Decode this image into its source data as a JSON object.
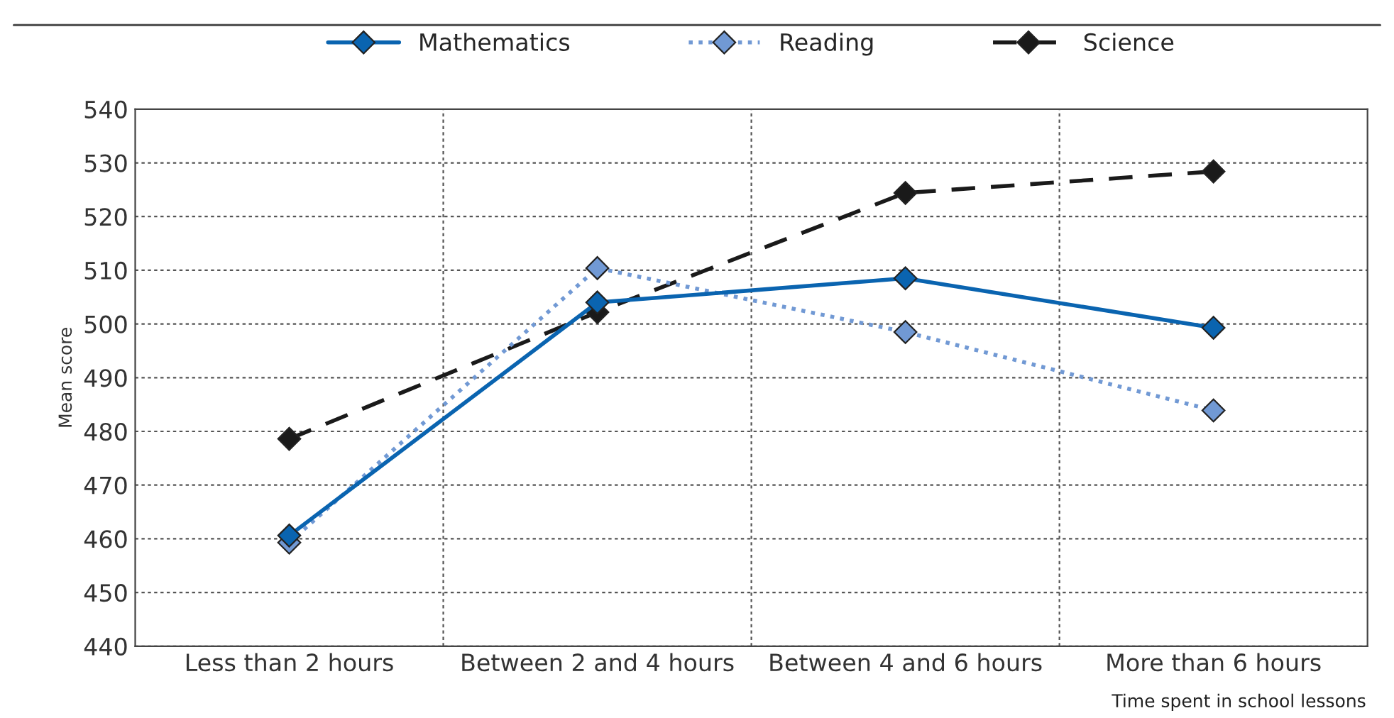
{
  "chart_data": {
    "type": "line",
    "categories": [
      "Less than 2 hours",
      "Between 2 and 4 hours",
      "Between 4 and 6 hours",
      "More than 6 hours"
    ],
    "series": [
      {
        "name": "Mathematics",
        "color": "#0a64b0",
        "values": [
          460.6,
          504.0,
          508.5,
          499.3
        ],
        "line_style": "solid"
      },
      {
        "name": "Reading",
        "color": "#7199d4",
        "values": [
          459.3,
          510.4,
          498.5,
          483.9
        ],
        "line_style": "dotted"
      },
      {
        "name": "Science",
        "color": "#1a1a1a",
        "values": [
          478.6,
          502.2,
          524.4,
          528.4
        ],
        "line_style": "dashed"
      }
    ],
    "ylabel": "Mean score",
    "xlabel": "Time spent in school lessons",
    "ylim": [
      440,
      540
    ],
    "yticks": [
      440,
      450,
      460,
      470,
      480,
      490,
      500,
      510,
      520,
      530,
      540
    ],
    "grid": true,
    "legend": "top",
    "marker": "diamond"
  }
}
